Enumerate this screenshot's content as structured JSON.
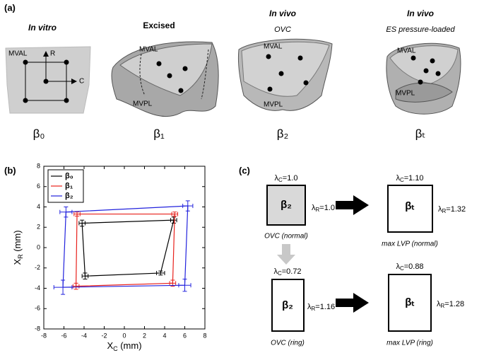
{
  "panel_a": {
    "label": "(a)",
    "columns": [
      {
        "title": "In vitro",
        "symbol": "β₀",
        "labels": [
          "MVAL",
          "R",
          "C"
        ]
      },
      {
        "title": "Excised",
        "symbol": "β₁",
        "labels": [
          "MVAL",
          "MVPL"
        ]
      },
      {
        "title": "In vivo",
        "subtitle": "OVC",
        "symbol": "β₂",
        "labels": [
          "MVAL",
          "MVPL"
        ]
      },
      {
        "title": "In vivo",
        "subtitle": "ES pressure-loaded",
        "symbol": "βₜ",
        "labels": [
          "MVAL",
          "MVPL"
        ]
      }
    ]
  },
  "chart_data": {
    "type": "line",
    "label": "(b)",
    "xlabel": {
      "text": "X",
      "sub": "C",
      "unit": " (mm)"
    },
    "ylabel": {
      "text": "X",
      "sub": "R",
      "unit": " (mm)"
    },
    "xlim": [
      -8,
      8
    ],
    "ylim": [
      -8,
      8
    ],
    "xticks": [
      -8,
      -6,
      -4,
      -2,
      0,
      2,
      4,
      6,
      8
    ],
    "yticks": [
      -8,
      -6,
      -4,
      -2,
      0,
      2,
      4,
      6,
      8
    ],
    "legend": "upper left",
    "closed": true,
    "series": [
      {
        "name": "β₀",
        "color": "#000000",
        "x": [
          -4.2,
          4.9,
          3.6,
          -3.9
        ],
        "values": [
          2.4,
          2.7,
          -2.5,
          -2.8
        ],
        "xerr": [
          0.3,
          0.3,
          0.4,
          0.3
        ],
        "yerr": [
          0.3,
          0.3,
          0.2,
          0.3
        ]
      },
      {
        "name": "β₁",
        "color": "#e8211c",
        "x": [
          -4.7,
          5.0,
          4.8,
          -4.8
        ],
        "values": [
          3.3,
          3.3,
          -3.5,
          -3.8
        ],
        "xerr": [
          0.3,
          0.3,
          0.3,
          0.3
        ],
        "yerr": [
          0.2,
          0.2,
          0.3,
          0.3
        ]
      },
      {
        "name": "β₂",
        "color": "#2222dd",
        "x": [
          -5.8,
          6.3,
          6.0,
          -6.1
        ],
        "values": [
          3.5,
          4.1,
          -3.7,
          -3.9
        ],
        "xerr": [
          0.6,
          0.5,
          0.6,
          0.9
        ],
        "yerr": [
          0.5,
          0.5,
          0.6,
          0.7
        ]
      }
    ]
  },
  "panel_c": {
    "label": "(c)",
    "lambda": "λ",
    "sub_c": "C",
    "sub_r": "R",
    "states": [
      {
        "symbol": "β₂",
        "lambda_c": "=1.0",
        "lambda_r": "=1.0",
        "caption": "OVC (normal)"
      },
      {
        "symbol": "βₜ",
        "lambda_c": "=1.10",
        "lambda_r": "=1.32",
        "caption": "max LVP (normal)"
      },
      {
        "symbol": "β₂",
        "lambda_c": "=0.72",
        "lambda_r": "=1.16",
        "caption": "OVC (ring)"
      },
      {
        "symbol": "βₜ",
        "lambda_c": "=0.88",
        "lambda_r": "=1.28",
        "caption": "max LVP (ring)"
      }
    ]
  }
}
